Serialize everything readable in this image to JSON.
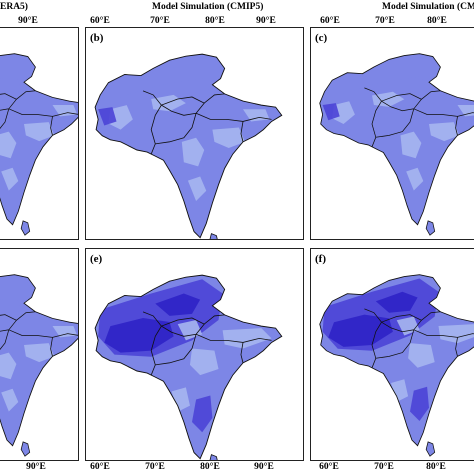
{
  "headings": {
    "left": "ERA5)",
    "middle": "Model Simulation (CMIP5)",
    "right": "Model Simulation (CMI"
  },
  "ticks": {
    "top_left": [
      "90°E"
    ],
    "top_middle": [
      "60°E",
      "70°E",
      "80°E",
      "90°E"
    ],
    "top_right": [
      "60°E",
      "70°E",
      "80°E"
    ],
    "bottom_left": [
      "90°E"
    ],
    "bottom_middle": [
      "60°E",
      "70°E",
      "80°E",
      "90°E"
    ],
    "bottom_right": [
      "60°E",
      "70°E",
      "80°E"
    ]
  },
  "panels": [
    {
      "id": "a",
      "label": "",
      "variant": "light"
    },
    {
      "id": "b",
      "label": "(b)",
      "variant": "light"
    },
    {
      "id": "c",
      "label": "(c)",
      "variant": "light"
    },
    {
      "id": "d",
      "label": "",
      "variant": "light"
    },
    {
      "id": "e",
      "label": "(e)",
      "variant": "dark"
    },
    {
      "id": "f",
      "label": "(f)",
      "variant": "dark"
    }
  ],
  "colors": {
    "light_blue": "#a6b6ef",
    "mid_blue": "#7d86e6",
    "dark_blue": "#4b44d6",
    "deep_blue": "#2e22c6",
    "boundary": "#111111"
  }
}
